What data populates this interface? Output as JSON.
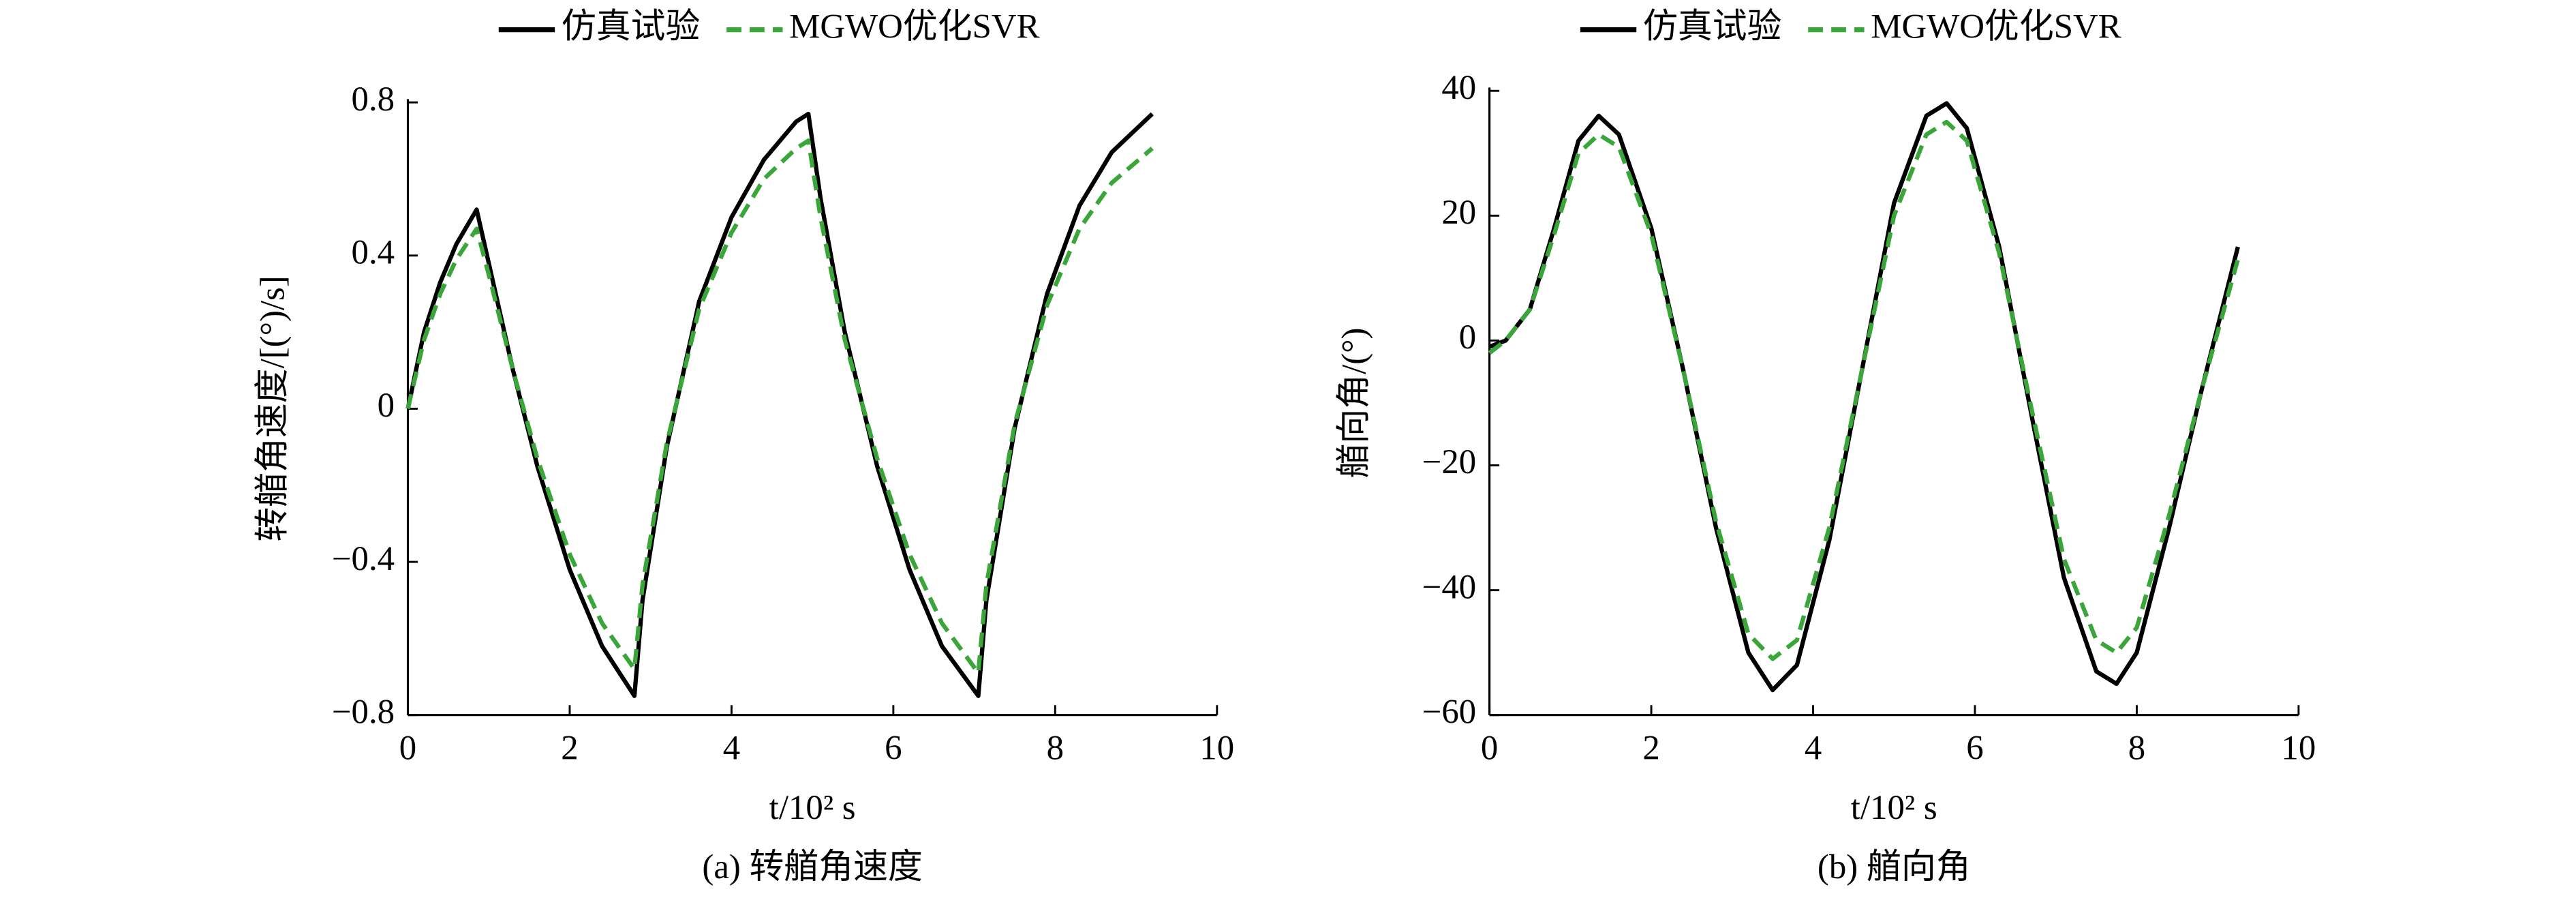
{
  "chart_data": [
    {
      "type": "line",
      "caption": "(a) 转艏角速度",
      "xlabel": "t/10² s",
      "ylabel": "转艏角速度/[(°)/s]",
      "legend": "top",
      "xlim": [
        0,
        10
      ],
      "xticks": [
        0,
        2,
        4,
        6,
        8,
        10
      ],
      "ylim": [
        -0.8,
        0.8
      ],
      "yticks": [
        {
          "value": -0.8,
          "label": "−0.8"
        },
        {
          "value": -0.4,
          "label": "−0.4"
        },
        0,
        0.4,
        0.8
      ],
      "x": [
        0,
        0.2,
        0.4,
        0.6,
        0.85,
        1.0,
        1.3,
        1.6,
        2.0,
        2.4,
        2.8,
        2.9,
        3.2,
        3.6,
        4.0,
        4.4,
        4.8,
        4.95,
        5.1,
        5.4,
        5.8,
        6.2,
        6.6,
        7.05,
        7.15,
        7.5,
        7.9,
        8.3,
        8.7,
        9.2
      ],
      "series": [
        {
          "name": "仿真试验",
          "color": "#000000",
          "dash": false,
          "values": [
            0,
            0.2,
            0.33,
            0.43,
            0.52,
            0.38,
            0.1,
            -0.15,
            -0.42,
            -0.62,
            -0.75,
            -0.5,
            -0.1,
            0.28,
            0.5,
            0.65,
            0.75,
            0.77,
            0.55,
            0.2,
            -0.15,
            -0.42,
            -0.62,
            -0.75,
            -0.5,
            -0.05,
            0.3,
            0.53,
            0.67,
            0.77
          ]
        },
        {
          "name": "MGWO优化SVR",
          "color": "#3aa63a",
          "dash": true,
          "values": [
            0,
            0.18,
            0.3,
            0.39,
            0.47,
            0.35,
            0.1,
            -0.13,
            -0.38,
            -0.56,
            -0.68,
            -0.46,
            -0.09,
            0.26,
            0.46,
            0.6,
            0.68,
            0.7,
            0.5,
            0.18,
            -0.13,
            -0.38,
            -0.56,
            -0.69,
            -0.46,
            -0.04,
            0.27,
            0.47,
            0.59,
            0.68
          ]
        }
      ]
    },
    {
      "type": "line",
      "caption": "(b) 艏向角",
      "xlabel": "t/10² s",
      "ylabel": "艏向角/(°)",
      "legend": "top",
      "xlim": [
        0,
        10
      ],
      "xticks": [
        0,
        2,
        4,
        6,
        8,
        10
      ],
      "ylim": [
        -60,
        40
      ],
      "yticks": [
        {
          "value": -60,
          "label": "−60"
        },
        {
          "value": -40,
          "label": "−40"
        },
        {
          "value": -20,
          "label": "−20"
        },
        0,
        20,
        40
      ],
      "x": [
        0,
        0.2,
        0.5,
        0.8,
        1.1,
        1.35,
        1.6,
        2.0,
        2.4,
        2.8,
        3.2,
        3.5,
        3.8,
        4.2,
        4.6,
        5.0,
        5.4,
        5.65,
        5.9,
        6.3,
        6.7,
        7.1,
        7.5,
        7.75,
        8.0,
        8.4,
        8.8,
        9.25
      ],
      "series": [
        {
          "name": "仿真试验",
          "color": "#000000",
          "dash": false,
          "values": [
            -1,
            0,
            5,
            18,
            32,
            36,
            33,
            18,
            -5,
            -30,
            -50,
            -56,
            -52,
            -32,
            -5,
            22,
            36,
            38,
            34,
            15,
            -12,
            -38,
            -53,
            -55,
            -50,
            -30,
            -8,
            15
          ]
        },
        {
          "name": "MGWO优化SVR",
          "color": "#3aa63a",
          "dash": true,
          "values": [
            -2,
            0,
            5,
            17,
            30,
            33,
            31,
            17,
            -5,
            -29,
            -47,
            -51,
            -48,
            -30,
            -5,
            20,
            33,
            35,
            32,
            14,
            -11,
            -35,
            -48,
            -50,
            -46,
            -28,
            -8,
            13
          ]
        }
      ]
    }
  ]
}
